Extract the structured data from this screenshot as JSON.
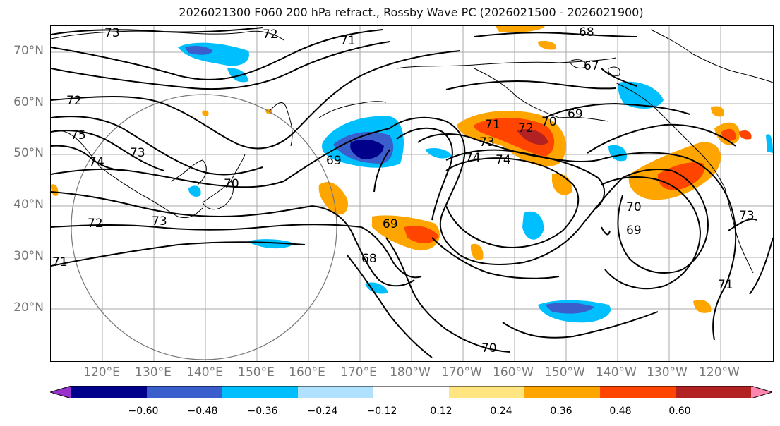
{
  "title": "2026021300 F060 200 hPa refract., Rossby Wave PC (2026021500 - 2026021900)",
  "lat_labels": [
    "70°N",
    "60°N",
    "50°N",
    "40°N",
    "30°N",
    "20°N"
  ],
  "lon_labels": [
    "120°E",
    "130°E",
    "140°E",
    "150°E",
    "160°E",
    "170°E",
    "180°W",
    "170°W",
    "160°W",
    "150°W",
    "140°W",
    "130°W",
    "120°W"
  ],
  "colorbar": {
    "ticks": [
      "−0.60",
      "−0.48",
      "−0.36",
      "−0.24",
      "−0.12",
      "0.12",
      "0.24",
      "0.36",
      "0.48",
      "0.60"
    ],
    "colors": [
      "#9932cc",
      "#00008b",
      "#3a5fcd",
      "#00bfff",
      "#b0e2ff",
      "#ffffff",
      "#ffe680",
      "#ffa500",
      "#ff4500",
      "#b22222",
      "#ff85b0"
    ]
  },
  "contour_labels": [
    "73",
    "72",
    "71",
    "68",
    "67",
    "72",
    "75",
    "74",
    "73",
    "69",
    "72",
    "71",
    "70",
    "73",
    "74",
    "69",
    "70",
    "69",
    "73",
    "70",
    "74",
    "73",
    "72",
    "71",
    "69",
    "68",
    "70",
    "71"
  ]
}
